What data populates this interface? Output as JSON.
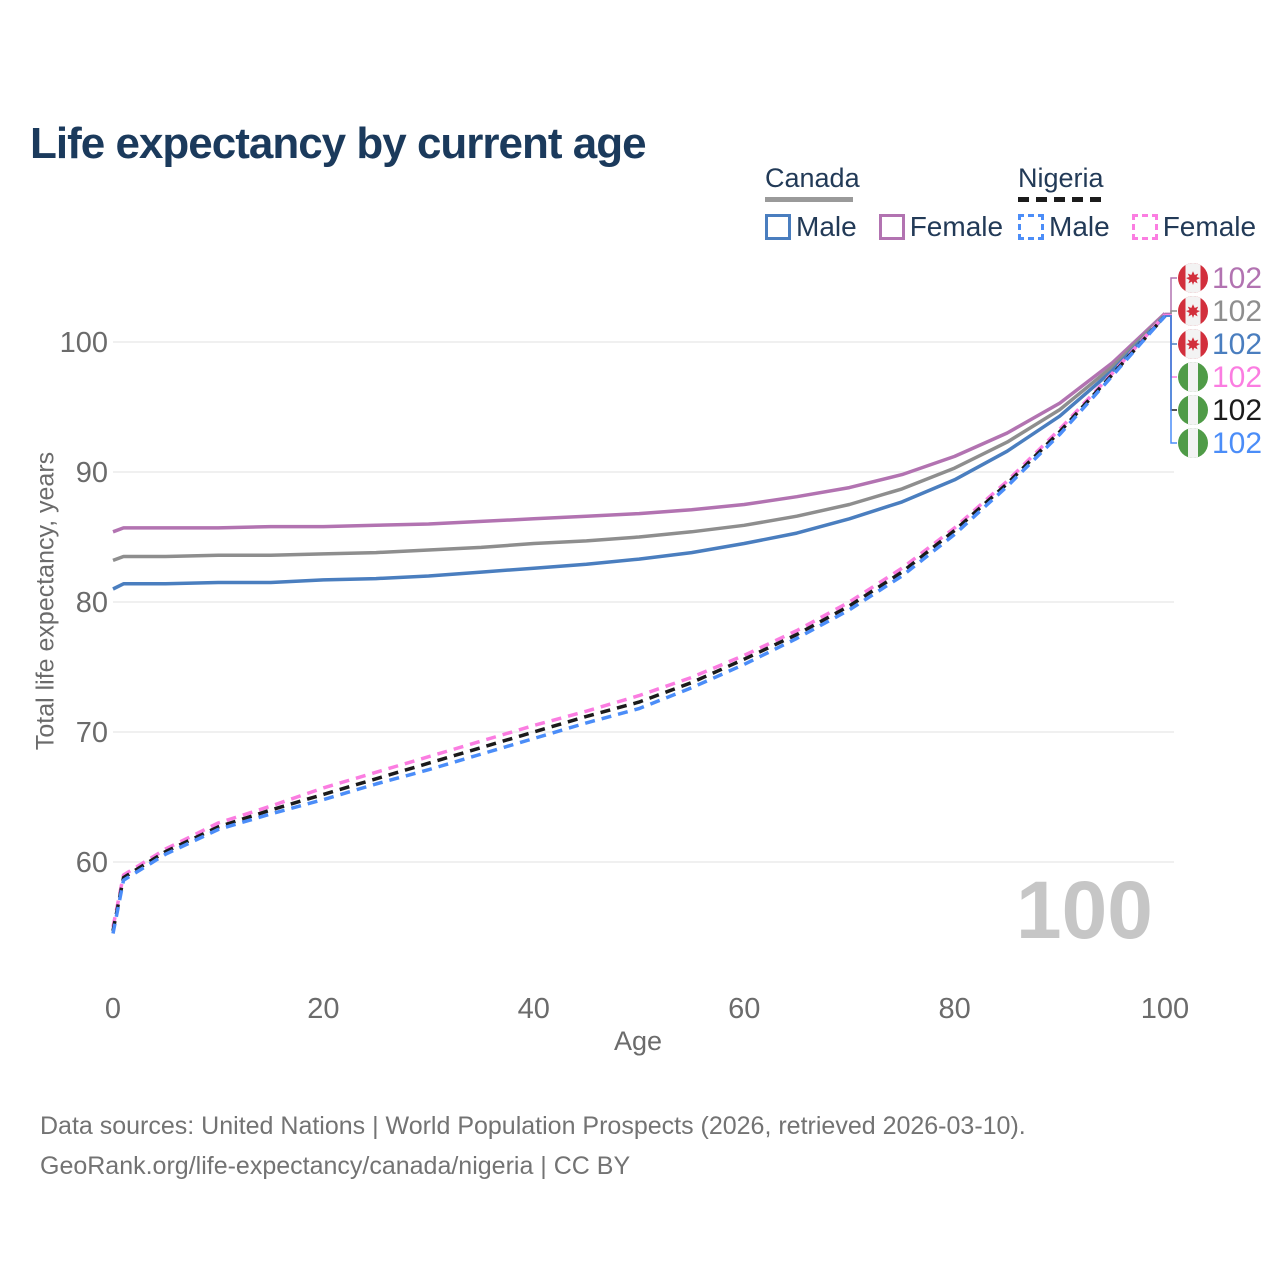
{
  "page": {
    "title": "Life expectancy by current age",
    "watermark_age": "100"
  },
  "legend": {
    "canada": {
      "label": "Canada",
      "male_label": "Male",
      "female_label": "Female"
    },
    "nigeria": {
      "label": "Nigeria",
      "male_label": "Male",
      "female_label": "Female"
    }
  },
  "footer": {
    "line1": "Data sources: United Nations | World Population Prospects (2026, retrieved 2026-03-10).",
    "line2": "GeoRank.org/life-expectancy/canada/nigeria | CC BY"
  },
  "chart_data": {
    "type": "line",
    "title": "Life expectancy by current age",
    "xlabel": "Age",
    "ylabel": "Total life expectancy, years",
    "xlim": [
      0,
      100
    ],
    "ylim": [
      54,
      104
    ],
    "x_ticks": [
      0,
      20,
      40,
      60,
      80,
      100
    ],
    "y_ticks": [
      60,
      70,
      80,
      90,
      100
    ],
    "grid": true,
    "legend_position": "top-right",
    "current_age_indicator": "100",
    "x": [
      0,
      1,
      5,
      10,
      15,
      20,
      25,
      30,
      35,
      40,
      45,
      50,
      55,
      60,
      65,
      70,
      75,
      80,
      85,
      90,
      95,
      100
    ],
    "series": [
      {
        "name": "Canada Female",
        "country": "Canada",
        "sex": "Female",
        "style": "solid",
        "color": "#b273b1",
        "end_value_label": "102",
        "flag": "canada",
        "values": [
          85.4,
          85.7,
          85.7,
          85.7,
          85.8,
          85.8,
          85.9,
          86.0,
          86.2,
          86.4,
          86.6,
          86.8,
          87.1,
          87.5,
          88.1,
          88.8,
          89.8,
          91.2,
          93.0,
          95.3,
          98.4,
          102.2
        ]
      },
      {
        "name": "Canada Both sexes",
        "country": "Canada",
        "sex": "Both",
        "style": "solid",
        "color": "#8e8e8e",
        "end_value_label": "102",
        "flag": "canada",
        "values": [
          83.2,
          83.5,
          83.5,
          83.6,
          83.6,
          83.7,
          83.8,
          84.0,
          84.2,
          84.5,
          84.7,
          85.0,
          85.4,
          85.9,
          86.6,
          87.5,
          88.7,
          90.3,
          92.3,
          94.8,
          98.1,
          102.1
        ]
      },
      {
        "name": "Canada Male",
        "country": "Canada",
        "sex": "Male",
        "style": "solid",
        "color": "#4a7ebf",
        "end_value_label": "102",
        "flag": "canada",
        "values": [
          81.0,
          81.4,
          81.4,
          81.5,
          81.5,
          81.7,
          81.8,
          82.0,
          82.3,
          82.6,
          82.9,
          83.3,
          83.8,
          84.5,
          85.3,
          86.4,
          87.7,
          89.4,
          91.6,
          94.3,
          97.8,
          102.0
        ]
      },
      {
        "name": "Nigeria Female",
        "country": "Nigeria",
        "sex": "Female",
        "style": "dashed",
        "color": "#fb7de1",
        "end_value_label": "102",
        "flag": "nigeria",
        "values": [
          55.0,
          59.0,
          61.0,
          63.0,
          64.3,
          65.7,
          66.9,
          68.1,
          69.3,
          70.5,
          71.6,
          72.8,
          74.2,
          75.9,
          77.8,
          80.0,
          82.6,
          85.7,
          89.3,
          93.3,
          97.6,
          102.1
        ]
      },
      {
        "name": "Nigeria Both sexes",
        "country": "Nigeria",
        "sex": "Both",
        "style": "dashed",
        "color": "#1b1b1b",
        "end_value_label": "102",
        "flag": "nigeria",
        "values": [
          54.7,
          58.8,
          60.8,
          62.7,
          64.0,
          65.2,
          66.4,
          67.6,
          68.8,
          70.0,
          71.2,
          72.3,
          73.8,
          75.6,
          77.5,
          79.7,
          82.3,
          85.5,
          89.1,
          93.1,
          97.5,
          102.0
        ]
      },
      {
        "name": "Nigeria Male",
        "country": "Nigeria",
        "sex": "Male",
        "style": "dashed",
        "color": "#4b8df8",
        "end_value_label": "102",
        "flag": "nigeria",
        "values": [
          54.5,
          58.6,
          60.6,
          62.5,
          63.7,
          64.8,
          66.0,
          67.1,
          68.3,
          69.5,
          70.7,
          71.8,
          73.4,
          75.2,
          77.2,
          79.4,
          82.0,
          85.2,
          88.9,
          92.9,
          97.4,
          102.0
        ]
      }
    ],
    "flag_colors": {
      "canada": "#d22f3c",
      "nigeria": "#4f9b47"
    }
  }
}
